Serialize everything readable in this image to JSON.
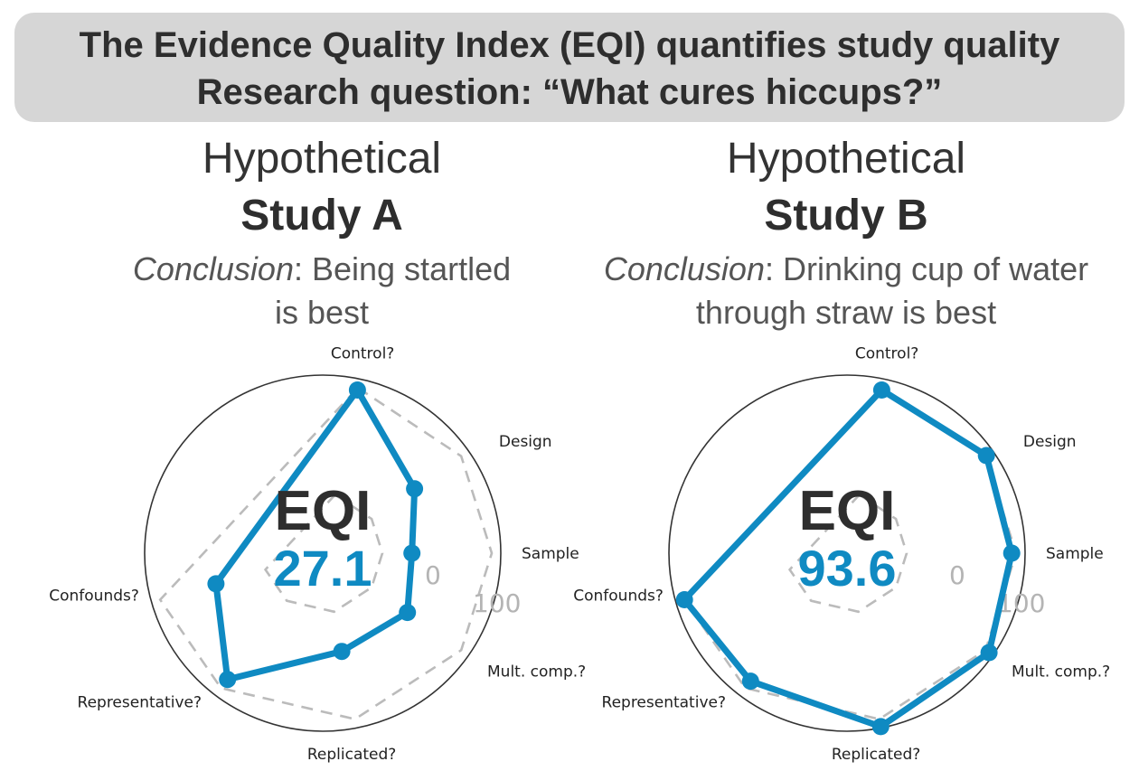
{
  "banner": {
    "line1": "The Evidence Quality Index (EQI) quantifies study quality",
    "line2": "Research question: “What cures hiccups?”"
  },
  "colors": {
    "series": "#0f8ac2",
    "outer_circle": "#333333",
    "reference_ring": "#bbbbbb",
    "banner_bg": "#d6d6d6"
  },
  "studies": [
    {
      "hypothetical": "Hypothetical",
      "name": "Study A",
      "conclusion_label": "Conclusion",
      "conclusion_sep": ": ",
      "conclusion_line1": "Being startled",
      "conclusion_line2": "is best"
    },
    {
      "hypothetical": "Hypothetical",
      "name": "Study B",
      "conclusion_label": "Conclusion",
      "conclusion_sep": ": ",
      "conclusion_line1": "Drinking cup of water",
      "conclusion_line2": "through straw is best"
    }
  ],
  "chart_data": [
    {
      "type": "radar",
      "title": "Study A",
      "axes": [
        "Control?",
        "Design",
        "Sample",
        "Mult. comp.?",
        "Replicated?",
        "Representative?",
        "Confounds?"
      ],
      "series": [
        {
          "name": "Study A",
          "values": [
            98,
            48,
            27,
            40,
            37,
            90,
            47
          ]
        }
      ],
      "reference_rings": [
        0,
        100
      ],
      "ring_labels": [
        "0",
        "100"
      ],
      "center_label": "EQI",
      "center_value": "27.1",
      "range": [
        -50,
        110
      ]
    },
    {
      "type": "radar",
      "title": "Study B",
      "axes": [
        "Control?",
        "Design",
        "Sample",
        "Mult. comp.?",
        "Replicated?",
        "Representative?",
        "Confounds?"
      ],
      "series": [
        {
          "name": "Study B",
          "values": [
            98,
            101,
            96,
            104,
            107,
            92,
            100
          ]
        }
      ],
      "reference_rings": [
        0,
        100
      ],
      "ring_labels": [
        "0",
        "100"
      ],
      "center_label": "EQI",
      "center_value": "93.6",
      "range": [
        -50,
        110
      ]
    }
  ]
}
